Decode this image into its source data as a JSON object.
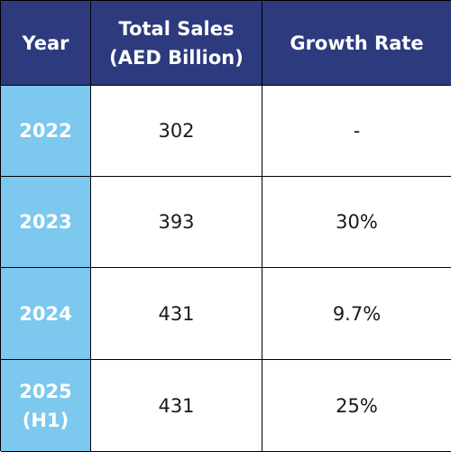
{
  "table": {
    "headers": [
      "Year",
      "Total Sales\n(AED Billion)",
      "Growth Rate"
    ],
    "rows": [
      {
        "year": "2022",
        "sales": "302",
        "growth": "-"
      },
      {
        "year": "2023",
        "sales": "393",
        "growth": "30%"
      },
      {
        "year": "2024",
        "sales": "431",
        "growth": "9.7%"
      },
      {
        "year": "2025\n(H1)",
        "sales": "431",
        "growth": "25%"
      }
    ],
    "colors": {
      "header_bg": "#2e3a7e",
      "year_bg": "#7cc8ee",
      "text_dark": "#1a1a1a",
      "text_light": "#ffffff"
    }
  }
}
